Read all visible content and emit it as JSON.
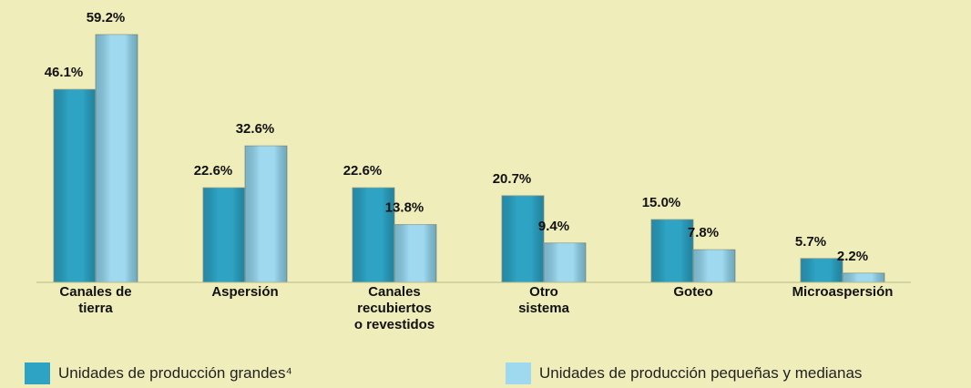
{
  "chart_data": {
    "type": "bar",
    "categories": [
      "Canales de\ntierra",
      "Aspersión",
      "Canales\nrecubiertos\no revestidos",
      "Otro\nsistema",
      "Goteo",
      "Microaspersión"
    ],
    "series": [
      {
        "name": "Unidades de producción grandes⁴",
        "color": "#2ea3c4",
        "values": [
          46.1,
          22.6,
          22.6,
          20.7,
          15.0,
          5.7
        ],
        "value_labels": [
          "46.1%",
          "22.6%",
          "22.6%",
          "20.7%",
          "15.0%",
          "5.7%"
        ]
      },
      {
        "name": "Unidades de producción pequeñas y medianas",
        "color": "#9fd9ef",
        "values": [
          59.2,
          32.6,
          13.8,
          9.4,
          7.8,
          2.2
        ],
        "value_labels": [
          "59.2%",
          "32.6%",
          "13.8%",
          "9.4%",
          "7.8%",
          "2.2%"
        ]
      }
    ]
  }
}
